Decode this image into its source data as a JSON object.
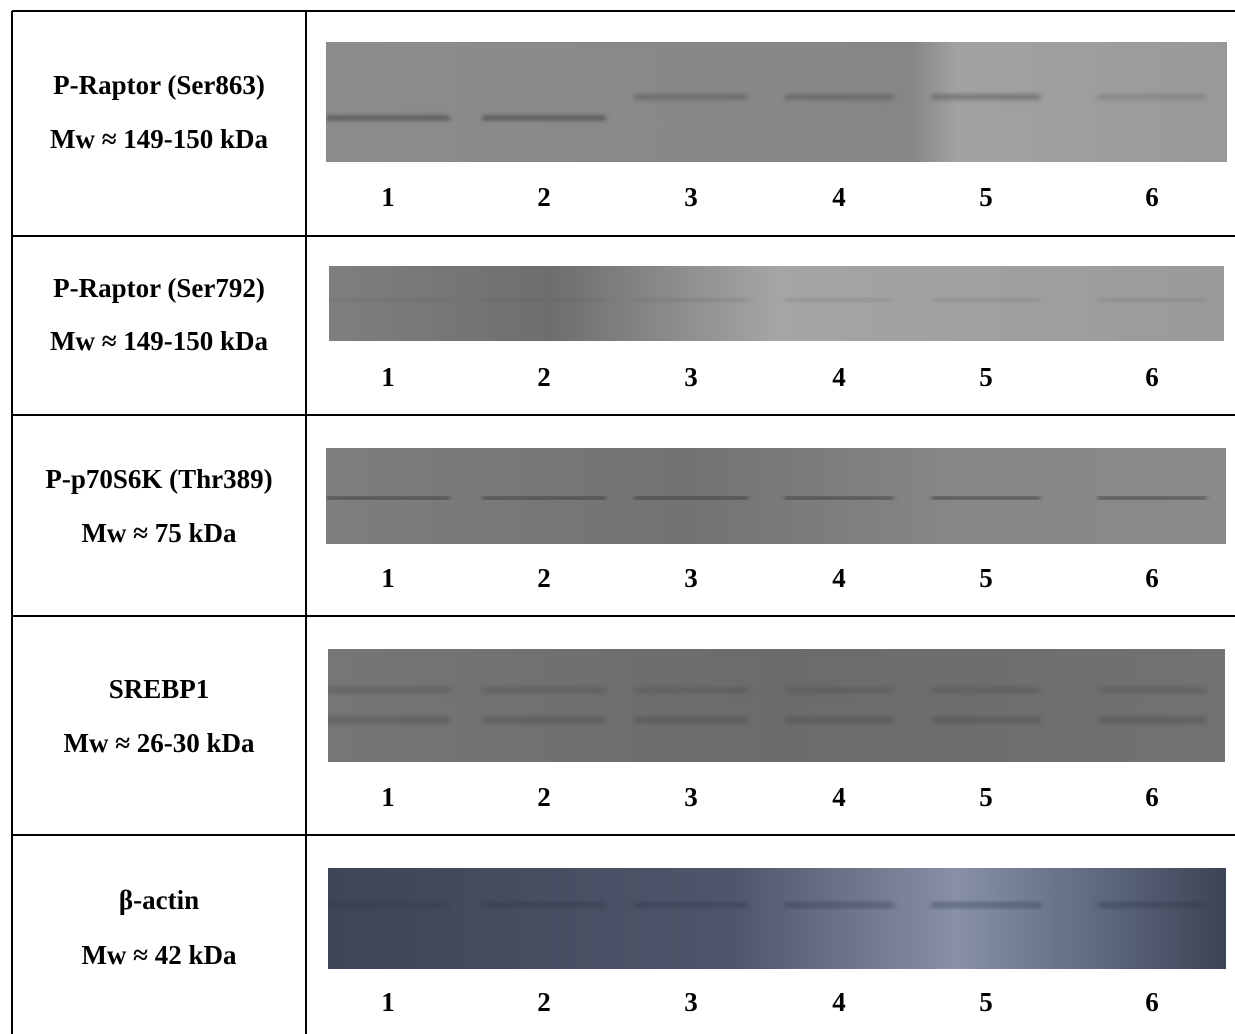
{
  "rows": [
    {
      "protein": "P-Raptor (Ser863)",
      "mw": "Mw ≈ 149-150 kDa",
      "lanes": [
        "1",
        "2",
        "3",
        "4",
        "5",
        "6"
      ]
    },
    {
      "protein": "P-Raptor (Ser792)",
      "mw": "Mw ≈ 149-150 kDa",
      "lanes": [
        "1",
        "2",
        "3",
        "4",
        "5",
        "6"
      ]
    },
    {
      "protein": "P-p70S6K (Thr389)",
      "mw": "Mw ≈ 75 kDa",
      "lanes": [
        "1",
        "2",
        "3",
        "4",
        "5",
        "6"
      ]
    },
    {
      "protein": "SREBP1",
      "mw": "Mw ≈ 26-30 kDa",
      "lanes": [
        "1",
        "2",
        "3",
        "4",
        "5",
        "6"
      ]
    },
    {
      "protein": "β-actin",
      "mw": "Mw ≈ 42 kDa",
      "lanes": [
        "1",
        "2",
        "3",
        "4",
        "5",
        "6"
      ]
    }
  ]
}
